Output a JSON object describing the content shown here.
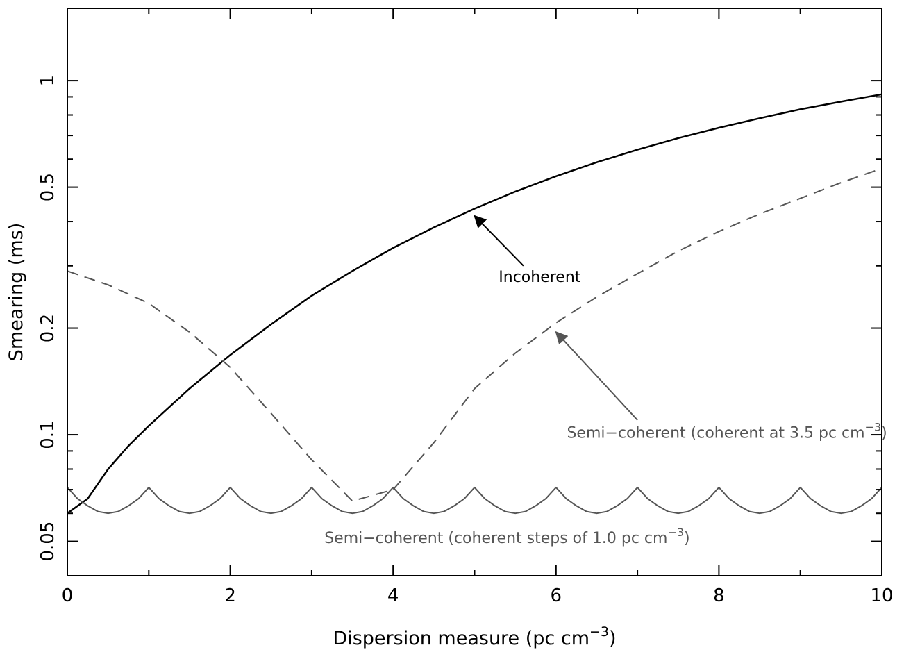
{
  "chart_data": {
    "type": "line",
    "xlabel": "Dispersion measure (pc cm",
    "xlabel_sup": "−3",
    "xlabel_end": ")",
    "ylabel": "Smearing (ms)",
    "xlim": [
      0,
      10
    ],
    "ylim": [
      0.04,
      1.6
    ],
    "y_scale": "log",
    "grid": false,
    "x_ticks": [
      0,
      2,
      4,
      6,
      8,
      10
    ],
    "x_tick_labels": [
      "0",
      "2",
      "4",
      "6",
      "8",
      "10"
    ],
    "y_ticks": [
      0.05,
      0.1,
      0.2,
      0.5,
      1
    ],
    "y_tick_labels": [
      "0.05",
      "0.1",
      "0.2",
      "0.5",
      "1"
    ],
    "series": [
      {
        "color": "#000000",
        "style": "solid",
        "x": [
          0,
          0.25,
          0.5,
          0.75,
          1,
          1.5,
          2,
          2.5,
          3,
          3.5,
          4,
          4.5,
          5,
          5.5,
          6,
          6.5,
          7,
          7.5,
          8,
          8.5,
          9,
          9.5,
          10
        ],
        "values": [
          0.06,
          0.066,
          0.08,
          0.093,
          0.106,
          0.135,
          0.168,
          0.205,
          0.247,
          0.29,
          0.337,
          0.385,
          0.435,
          0.486,
          0.537,
          0.588,
          0.638,
          0.688,
          0.736,
          0.783,
          0.83,
          0.872,
          0.915
        ]
      },
      {
        "color": "#555555",
        "style": "dashed",
        "x": [
          0,
          0.5,
          1,
          1.5,
          2,
          2.5,
          3,
          3.5,
          4,
          4.5,
          5,
          5.5,
          6,
          6.5,
          7,
          7.5,
          8,
          8.5,
          9,
          9.5,
          10
        ],
        "values": [
          0.29,
          0.265,
          0.235,
          0.195,
          0.155,
          0.115,
          0.085,
          0.065,
          0.07,
          0.095,
          0.135,
          0.17,
          0.207,
          0.245,
          0.285,
          0.33,
          0.375,
          0.42,
          0.465,
          0.515,
          0.565
        ]
      },
      {
        "color": "#555555",
        "style": "solid",
        "x": [
          0,
          0.125,
          0.25,
          0.375,
          0.5,
          0.625,
          0.75,
          0.875,
          1,
          1.125,
          1.25,
          1.375,
          1.5,
          1.625,
          1.75,
          1.875,
          2,
          2.125,
          2.25,
          2.375,
          2.5,
          2.625,
          2.75,
          2.875,
          3,
          3.125,
          3.25,
          3.375,
          3.5,
          3.625,
          3.75,
          3.875,
          4,
          4.125,
          4.25,
          4.375,
          4.5,
          4.625,
          4.75,
          4.875,
          5,
          5.125,
          5.25,
          5.375,
          5.5,
          5.625,
          5.75,
          5.875,
          6,
          6.125,
          6.25,
          6.375,
          6.5,
          6.625,
          6.75,
          6.875,
          7,
          7.125,
          7.25,
          7.375,
          7.5,
          7.625,
          7.75,
          7.875,
          8,
          8.125,
          8.25,
          8.375,
          8.5,
          8.625,
          8.75,
          8.875,
          9,
          9.125,
          9.25,
          9.375,
          9.5,
          9.625,
          9.75,
          9.875,
          10
        ],
        "values": [
          0.071,
          0.066,
          0.063,
          0.0607,
          0.06,
          0.0607,
          0.063,
          0.066,
          0.071,
          0.066,
          0.063,
          0.0607,
          0.06,
          0.0607,
          0.063,
          0.066,
          0.071,
          0.066,
          0.063,
          0.0607,
          0.06,
          0.0607,
          0.063,
          0.066,
          0.071,
          0.066,
          0.063,
          0.0607,
          0.06,
          0.0607,
          0.063,
          0.066,
          0.071,
          0.066,
          0.063,
          0.0607,
          0.06,
          0.0607,
          0.063,
          0.066,
          0.071,
          0.066,
          0.063,
          0.0607,
          0.06,
          0.0607,
          0.063,
          0.066,
          0.071,
          0.066,
          0.063,
          0.0607,
          0.06,
          0.0607,
          0.063,
          0.066,
          0.071,
          0.066,
          0.063,
          0.0607,
          0.06,
          0.0607,
          0.063,
          0.066,
          0.071,
          0.066,
          0.063,
          0.0607,
          0.06,
          0.0607,
          0.063,
          0.066,
          0.071,
          0.066,
          0.063,
          0.0607,
          0.06,
          0.0607,
          0.063,
          0.066,
          0.071
        ]
      }
    ],
    "annotations": [
      {
        "text": "Incoherent",
        "sup": "",
        "tail": "",
        "color": "#000000",
        "anchor": "middle",
        "text_at": [
          5.8,
          0.27
        ],
        "arrow_from": [
          5.6,
          0.3
        ],
        "arrow_to": [
          5.0,
          0.415
        ]
      },
      {
        "text": "Semi−coherent (coherent at 3.5 pc cm",
        "sup": "−3",
        "tail": ")",
        "color": "#555555",
        "anchor": "middle",
        "text_at": [
          8.1,
          0.098
        ],
        "arrow_from": [
          7.0,
          0.11
        ],
        "arrow_to": [
          6.0,
          0.195
        ]
      },
      {
        "text": "Semi−coherent (coherent steps of 1.0 pc cm",
        "sup": "−3",
        "tail": ")",
        "color": "#555555",
        "anchor": "middle",
        "text_at": [
          5.4,
          0.0495
        ],
        "arrow_from": null,
        "arrow_to": null
      }
    ]
  }
}
